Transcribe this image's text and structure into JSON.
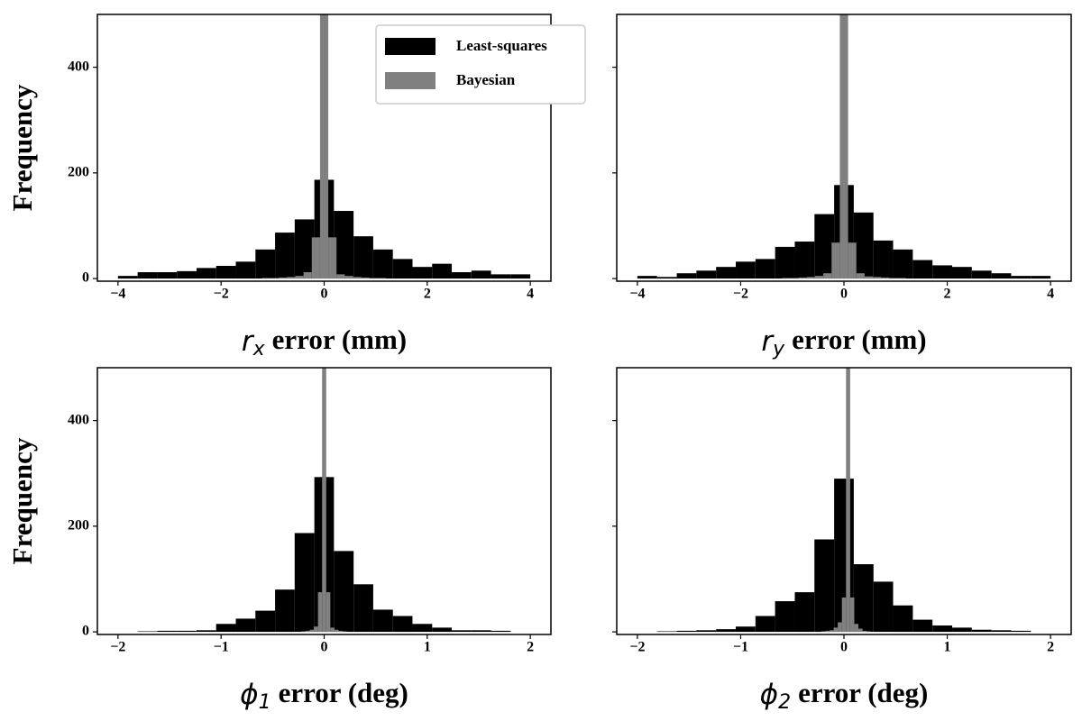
{
  "chart_data": [
    {
      "type": "histogram",
      "xlabel_symbol": "r",
      "xlabel_sub": "x",
      "xlabel": "error (mm)",
      "ylabel": "Frequency",
      "xlim": [
        -4.4,
        4.4
      ],
      "ylim": [
        -5,
        500
      ],
      "xticks": [
        {
          "value": -4,
          "label": "−4"
        },
        {
          "value": -2,
          "label": "−2"
        },
        0,
        2,
        4
      ],
      "yticks": [
        0,
        200,
        400
      ],
      "show_ytick_labels": true,
      "legend": "upper right",
      "series": [
        {
          "name": "Least-squares",
          "color": "#000000",
          "bins": [
            -4,
            -3.619,
            -3.238,
            -2.857,
            -2.476,
            -2.095,
            -1.714,
            -1.333,
            -0.952,
            -0.571,
            -0.19,
            0.19,
            0.571,
            0.952,
            1.333,
            1.714,
            2.095,
            2.476,
            2.857,
            3.238,
            3.619,
            4
          ],
          "values": [
            5,
            12,
            12,
            14,
            20,
            24,
            32,
            55,
            87,
            112,
            187,
            128,
            80,
            55,
            37,
            22,
            28,
            12,
            15,
            8,
            8
          ]
        },
        {
          "name": "Bayesian",
          "color": "#808080",
          "bins": [
            -1.2,
            -1.04,
            -0.88,
            -0.72,
            -0.56,
            -0.4,
            -0.24,
            -0.08,
            0.08,
            0.24,
            0.4,
            0.56,
            0.72,
            0.88,
            1.04,
            1.2
          ],
          "values": [
            1,
            1,
            2,
            3,
            5,
            12,
            78,
            600,
            78,
            8,
            5,
            3,
            2,
            1,
            1
          ]
        }
      ]
    },
    {
      "type": "histogram",
      "xlabel_symbol": "r",
      "xlabel_sub": "y",
      "xlabel": "error (mm)",
      "xlim": [
        -4.4,
        4.4
      ],
      "ylim": [
        -5,
        500
      ],
      "xticks": [
        {
          "value": -4,
          "label": "−4"
        },
        {
          "value": -2,
          "label": "−2"
        },
        0,
        2,
        4
      ],
      "yticks": [
        0,
        200,
        400
      ],
      "show_ytick_labels": false,
      "series": [
        {
          "color": "#000000",
          "bins": [
            -4,
            -3.619,
            -3.238,
            -2.857,
            -2.476,
            -2.095,
            -1.714,
            -1.333,
            -0.952,
            -0.571,
            -0.19,
            0.19,
            0.571,
            0.952,
            1.333,
            1.714,
            2.095,
            2.476,
            2.857,
            3.238,
            3.619,
            4
          ],
          "values": [
            5,
            3,
            10,
            15,
            22,
            32,
            37,
            60,
            70,
            122,
            177,
            125,
            72,
            55,
            35,
            25,
            22,
            15,
            10,
            5,
            5
          ]
        },
        {
          "color": "#808080",
          "bins": [
            -1.2,
            -1.04,
            -0.88,
            -0.72,
            -0.56,
            -0.4,
            -0.24,
            -0.08,
            0.08,
            0.24,
            0.4,
            0.56,
            0.72,
            0.88,
            1.04,
            1.2
          ],
          "values": [
            1,
            1,
            2,
            3,
            5,
            10,
            68,
            600,
            68,
            10,
            4,
            3,
            2,
            1,
            1
          ]
        }
      ]
    },
    {
      "type": "histogram",
      "xlabel_symbol": "ϕ",
      "xlabel_sub": "1",
      "xlabel": "error (deg)",
      "ylabel": "Frequency",
      "xlim": [
        -2.2,
        2.2
      ],
      "ylim": [
        -5,
        500
      ],
      "xticks": [
        {
          "value": -2,
          "label": "−2"
        },
        {
          "value": -1,
          "label": "−1"
        },
        0,
        1,
        2
      ],
      "yticks": [
        0,
        200,
        400
      ],
      "show_ytick_labels": true,
      "series": [
        {
          "color": "#000000",
          "bins": [
            -2,
            -1.81,
            -1.619,
            -1.429,
            -1.238,
            -1.048,
            -0.857,
            -0.667,
            -0.476,
            -0.286,
            -0.095,
            0.095,
            0.286,
            0.476,
            0.667,
            0.857,
            1.048,
            1.238,
            1.429,
            1.619,
            1.81,
            2
          ],
          "values": [
            0,
            1,
            2,
            2,
            3,
            15,
            25,
            40,
            80,
            187,
            293,
            153,
            90,
            42,
            30,
            15,
            8,
            3,
            3,
            2,
            0
          ]
        },
        {
          "color": "#808080",
          "bins": [
            -0.3,
            -0.26,
            -0.22,
            -0.18,
            -0.14,
            -0.1,
            -0.06,
            -0.02,
            0.02,
            0.06,
            0.1,
            0.14,
            0.18,
            0.22,
            0.26,
            0.3
          ],
          "values": [
            0,
            0,
            1,
            2,
            4,
            10,
            75,
            600,
            75,
            8,
            4,
            2,
            1,
            0,
            0
          ]
        }
      ]
    },
    {
      "type": "histogram",
      "xlabel_symbol": "ϕ",
      "xlabel_sub": "2",
      "xlabel": "error (deg)",
      "xlim": [
        -2.2,
        2.2
      ],
      "ylim": [
        -5,
        500
      ],
      "xticks": [
        {
          "value": -2,
          "label": "−2"
        },
        {
          "value": -1,
          "label": "−1"
        },
        0,
        1,
        2
      ],
      "yticks": [
        0,
        200,
        400
      ],
      "show_ytick_labels": false,
      "series": [
        {
          "color": "#000000",
          "bins": [
            -2,
            -1.81,
            -1.619,
            -1.429,
            -1.238,
            -1.048,
            -0.857,
            -0.667,
            -0.476,
            -0.286,
            -0.095,
            0.095,
            0.286,
            0.476,
            0.667,
            0.857,
            1.048,
            1.238,
            1.429,
            1.619,
            1.81,
            2
          ],
          "values": [
            0,
            1,
            2,
            3,
            5,
            10,
            30,
            58,
            75,
            175,
            290,
            128,
            95,
            50,
            23,
            12,
            8,
            4,
            3,
            2,
            0
          ]
        },
        {
          "color": "#808080",
          "bins": [
            -0.3,
            -0.26,
            -0.22,
            -0.18,
            -0.14,
            -0.1,
            -0.06,
            -0.02,
            0.02,
            0.06,
            0.1,
            0.14,
            0.18,
            0.22,
            0.26,
            0.3
          ],
          "values": [
            0,
            0,
            1,
            2,
            3,
            8,
            18,
            65,
            600,
            65,
            15,
            6,
            2,
            1,
            0
          ]
        }
      ]
    }
  ]
}
